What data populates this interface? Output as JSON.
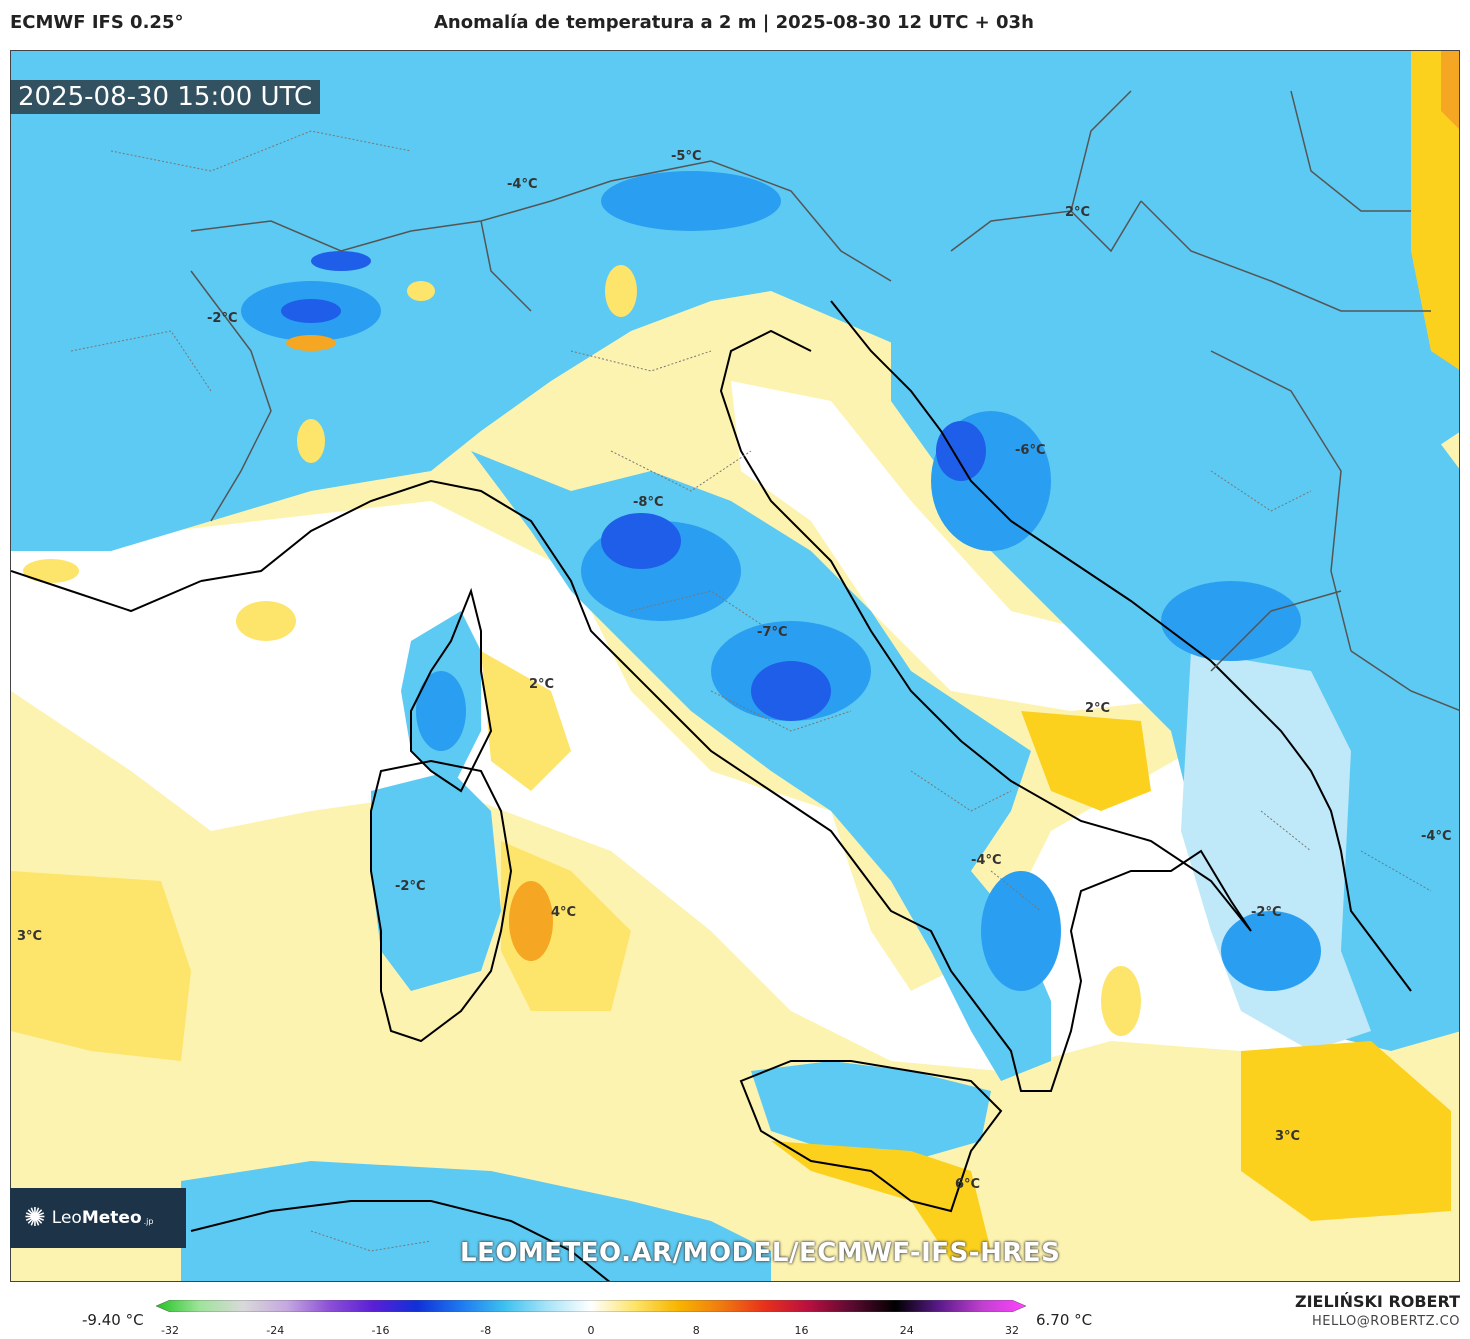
{
  "header": {
    "model": "ECMWF IFS 0.25°",
    "title": "Anomalía de temperatura a 2 m | 2025-08-30 12 UTC + 03h"
  },
  "map": {
    "valid_time": "2025-08-30 15:00 UTC",
    "labels": [
      {
        "text": "-5°C"
      },
      {
        "text": "-4°C"
      },
      {
        "text": "2°C"
      },
      {
        "text": "-2°C"
      },
      {
        "text": "-8°C"
      },
      {
        "text": "-6°C"
      },
      {
        "text": "-7°C"
      },
      {
        "text": "2°C"
      },
      {
        "text": "2°C"
      },
      {
        "text": "-2°C"
      },
      {
        "text": "4°C"
      },
      {
        "text": "3°C"
      },
      {
        "text": "-4°C"
      },
      {
        "text": "-4°C"
      },
      {
        "text": "-2°C"
      },
      {
        "text": "3°C"
      },
      {
        "text": "6°C"
      }
    ],
    "colors": {
      "land_cold": "#5ccaf2",
      "cold_mid": "#2a9ef0",
      "cold_deep": "#1e5ee8",
      "cold_light": "#bfe8f8",
      "neutral": "#ffffff",
      "warm_light": "#fdf3b0",
      "warm_mid": "#fde46a",
      "warm_strong": "#fbd11e",
      "warm_deep": "#f5a623",
      "coast": "#000000",
      "border": "#555555"
    }
  },
  "logo": {
    "brand_prefix": "Leo",
    "brand_bold": "Meteo",
    "suffix": ".jp"
  },
  "watermark_url": "LEOMETEO.AR/MODEL/ECMWF-IFS-HRES",
  "colorbar": {
    "min_label": "-9.40 °C",
    "max_label": "6.70 °C",
    "ticks": [
      "-32",
      "-24",
      "-16",
      "-8",
      "0",
      "8",
      "16",
      "24",
      "32"
    ],
    "range": [
      -32,
      32
    ],
    "stops": [
      "#22c322",
      "#9ee39a",
      "#d9d9d9",
      "#c5a8e0",
      "#8c4fd6",
      "#5a1fd6",
      "#1030d8",
      "#1e78f0",
      "#3cc0f0",
      "#a8e4f8",
      "#ffffff",
      "#fde46a",
      "#f7b500",
      "#f07a10",
      "#e8301a",
      "#b81040",
      "#5a0a30",
      "#000000",
      "#5a1a8a",
      "#c040d0",
      "#ff44ff"
    ]
  },
  "credit": {
    "author": "ZIELIŃSKI ROBERT",
    "email": "HELLO@ROBERTZ.CO"
  }
}
